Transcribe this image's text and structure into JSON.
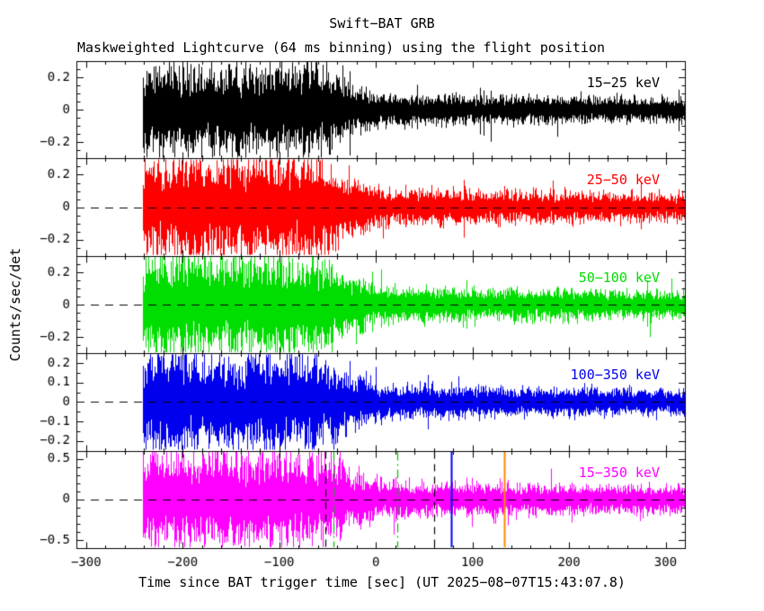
{
  "chart_data": {
    "type": "line",
    "title": "Swift−BAT GRB",
    "subtitle": "Maskweighted Lightcurve (64 ms binning) using the flight position",
    "xlabel": "Time since BAT trigger time [sec] (UT 2025−08−07T15:43:07.8)",
    "ylabel": "Counts/sec/det",
    "xlim": [
      -310,
      320
    ],
    "xticks": [
      -300,
      -200,
      -100,
      0,
      100,
      200,
      300
    ],
    "xtick_minor": 20,
    "data_start": -242,
    "data_end": 320,
    "binning": "64 ms",
    "trigger_time_ut": "2025−08−07T15:43:07.8",
    "envelope": {
      "high_until": -70,
      "taper_until": 10,
      "low_level": 0.36,
      "end_level": 0.28
    },
    "panels": [
      {
        "label": "15−25 keV",
        "color": "#000000",
        "ylim": [
          -0.3,
          0.3
        ],
        "yticks": [
          0.2,
          0,
          -0.2
        ],
        "ytick_minor": 0.05,
        "amplitude": 0.19,
        "zero_dashed": false
      },
      {
        "label": "25−50 keV",
        "color": "#ff0000",
        "ylim": [
          -0.3,
          0.3
        ],
        "yticks": [
          0.2,
          0,
          -0.2
        ],
        "ytick_minor": 0.05,
        "amplitude": 0.22,
        "zero_dashed": true
      },
      {
        "label": "50−100 keV",
        "color": "#00dd00",
        "ylim": [
          -0.3,
          0.3
        ],
        "yticks": [
          0.2,
          0,
          -0.2
        ],
        "ytick_minor": 0.05,
        "amplitude": 0.22,
        "zero_dashed": true
      },
      {
        "label": "100−350 keV",
        "color": "#0000ee",
        "ylim": [
          -0.25,
          0.25
        ],
        "yticks": [
          0.2,
          0.1,
          0,
          -0.1,
          -0.2
        ],
        "ytick_minor": 0.05,
        "amplitude": 0.17,
        "zero_dashed": true
      },
      {
        "label": "15−350 keV",
        "color": "#ff00ff",
        "ylim": [
          -0.6,
          0.6
        ],
        "yticks": [
          0.5,
          0,
          -0.5
        ],
        "ytick_minor": 0.1,
        "amplitude": 0.42,
        "zero_dashed": true
      }
    ],
    "vertical_lines": [
      {
        "x": -52,
        "color": "#000000",
        "style": "dashed",
        "panel": 4
      },
      {
        "x": -44,
        "color": "#00bb00",
        "style": "dashdot",
        "panel": 4
      },
      {
        "x": 22,
        "color": "#00bb00",
        "style": "dashdot",
        "panel": 4
      },
      {
        "x": 60,
        "color": "#000000",
        "style": "dashed",
        "panel": 4
      },
      {
        "x": 78,
        "color": "#0000ee",
        "style": "solid",
        "panel": 4
      },
      {
        "x": 133,
        "color": "#ff8800",
        "style": "solid",
        "panel": 4
      }
    ]
  }
}
